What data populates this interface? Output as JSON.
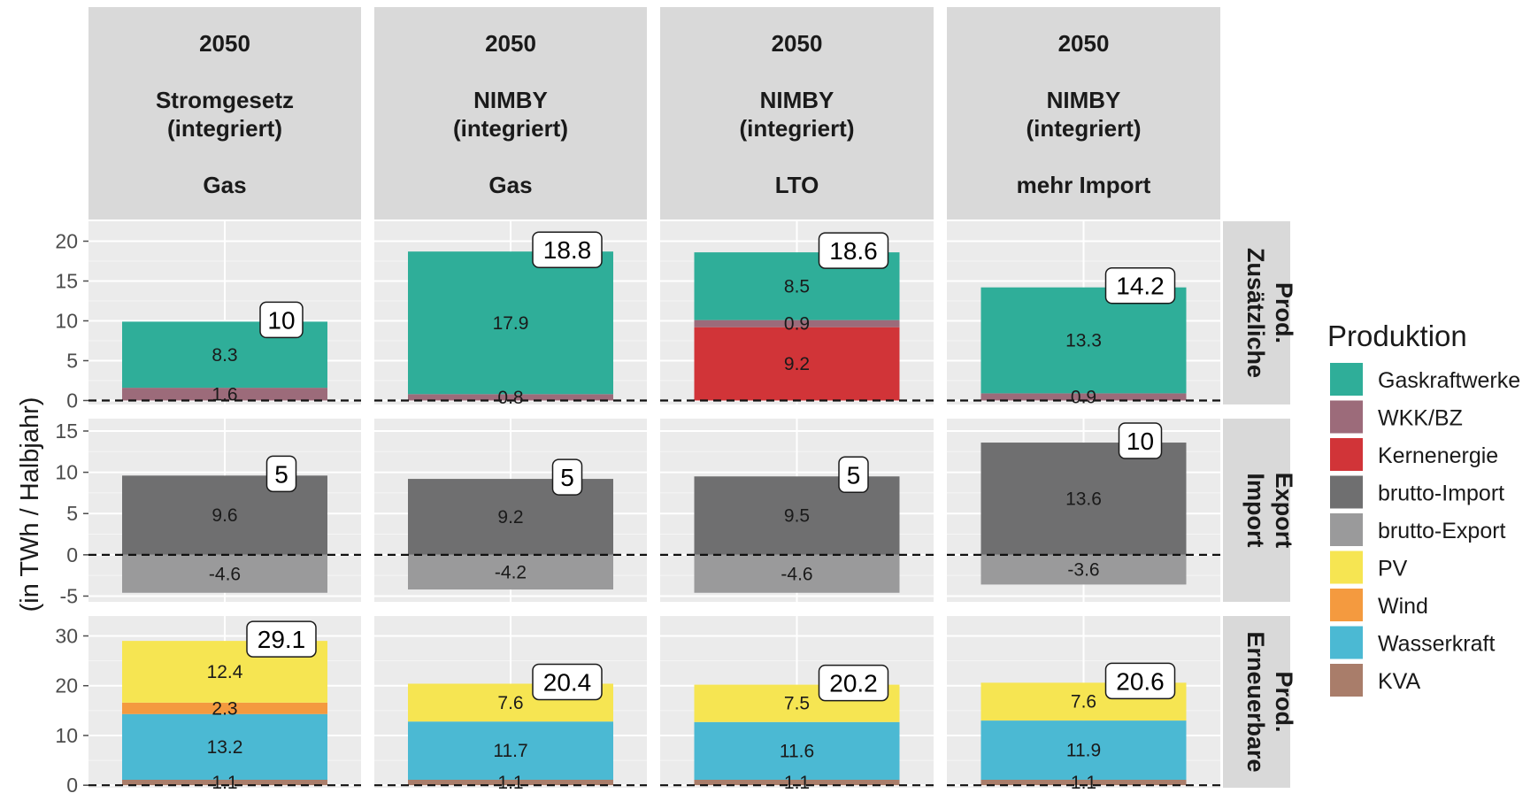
{
  "chart_data": {
    "type": "bar",
    "stacked": true,
    "faceted": true,
    "ylabel": "(in TWh / Halbjahr)",
    "grid": true,
    "columns": [
      {
        "year": "2050",
        "scenario": "Stromgesetz\n(integriert)",
        "variant": "Gas"
      },
      {
        "year": "2050",
        "scenario": "NIMBY\n(integriert)",
        "variant": "Gas"
      },
      {
        "year": "2050",
        "scenario": "NIMBY\n(integriert)",
        "variant": "LTO"
      },
      {
        "year": "2050",
        "scenario": "NIMBY\n(integriert)",
        "variant": "mehr Import"
      }
    ],
    "rows": [
      {
        "label": "Zusätzliche\nProd.",
        "ylim": [
          -0.5,
          22.5
        ],
        "ticks": [
          0,
          5,
          10,
          15,
          20
        ],
        "panels": [
          {
            "segments": [
              {
                "series": "WKK/BZ",
                "value": 1.6
              },
              {
                "series": "Gaskraftwerke",
                "value": 8.3
              }
            ],
            "total": "10"
          },
          {
            "segments": [
              {
                "series": "WKK/BZ",
                "value": 0.8
              },
              {
                "series": "Gaskraftwerke",
                "value": 17.9
              }
            ],
            "total": "18.8"
          },
          {
            "segments": [
              {
                "series": "Kernenergie",
                "value": 9.2
              },
              {
                "series": "WKK/BZ",
                "value": 0.9
              },
              {
                "series": "Gaskraftwerke",
                "value": 8.5
              }
            ],
            "total": "18.6"
          },
          {
            "segments": [
              {
                "series": "WKK/BZ",
                "value": 0.9
              },
              {
                "series": "Gaskraftwerke",
                "value": 13.3
              }
            ],
            "total": "14.2"
          }
        ]
      },
      {
        "label": "Import\nExport",
        "ylim": [
          -5.7,
          16.5
        ],
        "ticks": [
          -5,
          0,
          5,
          10,
          15
        ],
        "panels": [
          {
            "segments": [
              {
                "series": "brutto-Import",
                "value": 9.6
              },
              {
                "series": "brutto-Export",
                "value": -4.6
              }
            ],
            "total": "5"
          },
          {
            "segments": [
              {
                "series": "brutto-Import",
                "value": 9.2
              },
              {
                "series": "brutto-Export",
                "value": -4.2
              }
            ],
            "total": "5"
          },
          {
            "segments": [
              {
                "series": "brutto-Import",
                "value": 9.5
              },
              {
                "series": "brutto-Export",
                "value": -4.6
              }
            ],
            "total": "5"
          },
          {
            "segments": [
              {
                "series": "brutto-Import",
                "value": 13.6
              },
              {
                "series": "brutto-Export",
                "value": -3.6
              }
            ],
            "total": "10"
          }
        ]
      },
      {
        "label": "Erneuerbare\nProd.",
        "ylim": [
          -0.5,
          34
        ],
        "ticks": [
          0,
          10,
          20,
          30
        ],
        "panels": [
          {
            "segments": [
              {
                "series": "KVA",
                "value": 1.1
              },
              {
                "series": "Wasserkraft",
                "value": 13.2
              },
              {
                "series": "Wind",
                "value": 2.3
              },
              {
                "series": "PV",
                "value": 12.4
              }
            ],
            "total": "29.1"
          },
          {
            "segments": [
              {
                "series": "KVA",
                "value": 1.1
              },
              {
                "series": "Wasserkraft",
                "value": 11.7
              },
              {
                "series": "PV",
                "value": 7.6
              }
            ],
            "total": "20.4"
          },
          {
            "segments": [
              {
                "series": "KVA",
                "value": 1.1
              },
              {
                "series": "Wasserkraft",
                "value": 11.6
              },
              {
                "series": "PV",
                "value": 7.5
              }
            ],
            "total": "20.2"
          },
          {
            "segments": [
              {
                "series": "KVA",
                "value": 1.1
              },
              {
                "series": "Wasserkraft",
                "value": 11.9
              },
              {
                "series": "PV",
                "value": 7.6
              }
            ],
            "total": "20.6"
          }
        ]
      }
    ],
    "legend": {
      "title": "Produktion",
      "position": "right",
      "entries": [
        {
          "name": "Gaskraftwerke",
          "color": "#2fae99"
        },
        {
          "name": "WKK/BZ",
          "color": "#9c6b7a"
        },
        {
          "name": "Kernenergie",
          "color": "#d13438"
        },
        {
          "name": "brutto-Import",
          "color": "#6f6f70"
        },
        {
          "name": "brutto-Export",
          "color": "#9a9a9b"
        },
        {
          "name": "PV",
          "color": "#f6e552"
        },
        {
          "name": "Wind",
          "color": "#f49a3f"
        },
        {
          "name": "Wasserkraft",
          "color": "#4bb9d3"
        },
        {
          "name": "KVA",
          "color": "#a97d6a"
        }
      ]
    }
  }
}
